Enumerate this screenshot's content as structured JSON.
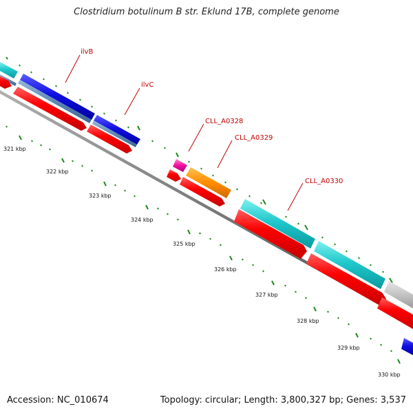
{
  "title": "Clostridium botulinum B str. Eklund 17B, complete genome",
  "footer": {
    "accession_label": "Accession:",
    "accession": "NC_010674",
    "topology_text": "Topology: circular; Length: 3,800,327 bp; Genes: 3,537"
  },
  "colors": {
    "backbone": "#8a8a8a",
    "tick": "#1e8a1e",
    "cds": "#ff0000",
    "label": "#c00000"
  },
  "kbp_labels": [
    "321 kbp",
    "322 kbp",
    "323 kbp",
    "324 kbp",
    "325 kbp",
    "326 kbp",
    "327 kbp",
    "328 kbp",
    "329 kbp",
    "330 kbp"
  ],
  "gene_labels": [
    "ilvB",
    "ilvC",
    "CLL_A0328",
    "CLL_A0329",
    "CLL_A0330"
  ]
}
